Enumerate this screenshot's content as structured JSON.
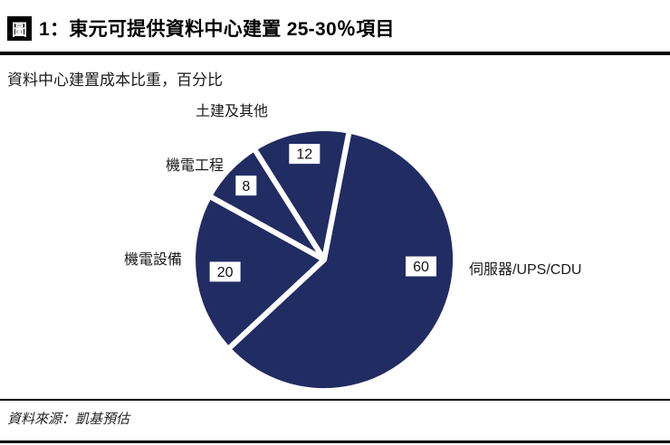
{
  "header": {
    "figure_marker": "圖",
    "title": "1：東元可提供資料中心建置 25-30％項目"
  },
  "subtitle": "資料中心建置成本比重，百分比",
  "source": "資料來源：凱基預估",
  "chart_data": {
    "type": "pie",
    "title": "資料中心建置成本比重，百分比",
    "unit": "%",
    "total": 100,
    "slices": [
      {
        "label": "伺服器/UPS/CDU",
        "value": 60
      },
      {
        "label": "機電設備",
        "value": 20
      },
      {
        "label": "機電工程",
        "value": 8
      },
      {
        "label": "土建及其他",
        "value": 12
      }
    ],
    "start_angle_deg_clockwise_from_top": 11,
    "colors": {
      "slice": "#212C63",
      "divider": "#FFFFFF",
      "label_text": "#111111"
    },
    "legend": "none",
    "value_label_style": "black text on white patch inside slice",
    "category_label_style": "black text outside pie"
  }
}
